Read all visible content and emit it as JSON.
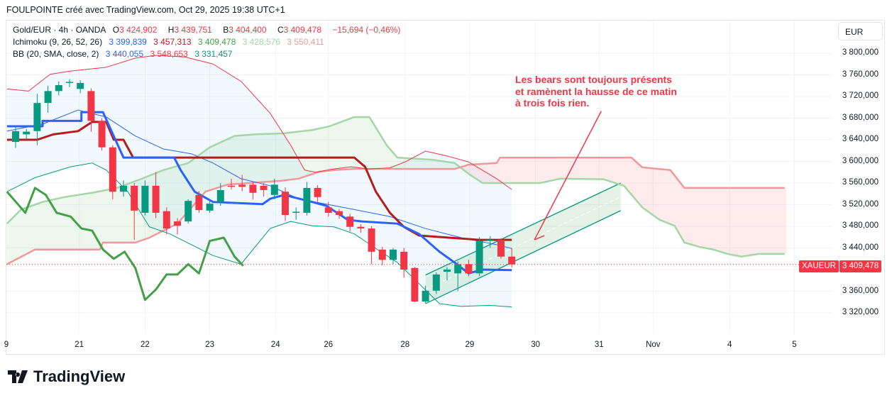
{
  "header": "FOULPOINTE créé avec TradingView.com, Oct 29, 2025 19:38 UTC+1",
  "legend": {
    "symbol": "Gold/EUR · 4h · OANDA",
    "o_label": "O",
    "o": "3 424,902",
    "h_label": "H",
    "h": "3 439,751",
    "b_label": "B",
    "b": "3 404,400",
    "c_label": "C",
    "c": "3 409,478",
    "change": "−15,694 (−0,46%)",
    "ichimoku_label": "Ichimoku (9, 26, 52, 26)",
    "ichimoku_values": [
      "3 399,839",
      "3 457,313",
      "3 409,478",
      "3 428,576",
      "3 550,411"
    ],
    "bb_label": "BB (20, SMA, close, 2)",
    "bb_values": [
      "3 440,055",
      "3 548,653",
      "3 331,457"
    ]
  },
  "currency_button": "EUR",
  "price_axis": [
    "3 800,000",
    "3 760,000",
    "3 720,000",
    "3 680,000",
    "3 640,000",
    "3 600,000",
    "3 560,000",
    "3 520,000",
    "3 480,000",
    "3 440,000",
    "3 360,000",
    "3 320,000"
  ],
  "last_price": {
    "symbol": "XAUEUR",
    "value": "3 409,478",
    "price": 3409.478
  },
  "annotation": "Les bears sont toujours présents\net ramènent la hausse de ce matin\nà trois fois rien.",
  "logo": "TradingView",
  "colors": {
    "up": "#089981",
    "down": "#f23645",
    "tenkan": "#2962ff",
    "kijun": "#b71c1c",
    "chikou": "#43a047",
    "spanA": "#a5d6a7",
    "spanB": "#ef9a9a",
    "bbBasis": "#2962ff",
    "bbUpper": "#f23645",
    "bbLower": "#089981"
  },
  "chart_data": {
    "type": "candlestick",
    "title": "Gold/EUR · 4h · OANDA",
    "ylim": [
      3300,
      3840
    ],
    "x_ticks": [
      {
        "label": "9",
        "i": -0.9
      },
      {
        "label": "21",
        "i": 5.9
      },
      {
        "label": "22",
        "i": 12
      },
      {
        "label": "23",
        "i": 18
      },
      {
        "label": "24",
        "i": 24.1
      },
      {
        "label": "26",
        "i": 29
      },
      {
        "label": "28",
        "i": 36.1
      },
      {
        "label": "29",
        "i": 42.1
      },
      {
        "label": "30",
        "i": 48.2
      },
      {
        "label": "31",
        "i": 54.1
      },
      {
        "label": "Nov",
        "i": 59.1
      },
      {
        "label": "4",
        "i": 66.2
      },
      {
        "label": "5",
        "i": 72.2
      }
    ],
    "candles": [
      [
        3636,
        3665,
        3625,
        3656
      ],
      [
        3650,
        3660,
        3640,
        3655
      ],
      [
        3656,
        3725,
        3630,
        3708
      ],
      [
        3708,
        3740,
        3690,
        3730
      ],
      [
        3730,
        3748,
        3722,
        3741
      ],
      [
        3745,
        3752,
        3737,
        3747
      ],
      [
        3734,
        3750,
        3726,
        3745
      ],
      [
        3730,
        3735,
        3655,
        3675
      ],
      [
        3675,
        3680,
        3620,
        3626
      ],
      [
        3626,
        3630,
        3530,
        3544
      ],
      [
        3544,
        3565,
        3535,
        3555
      ],
      [
        3555,
        3560,
        3455,
        3509
      ],
      [
        3505,
        3565,
        3500,
        3555
      ],
      [
        3555,
        3580,
        3495,
        3505
      ],
      [
        3508,
        3515,
        3465,
        3476
      ],
      [
        3489,
        3495,
        3465,
        3481
      ],
      [
        3489,
        3530,
        3485,
        3527
      ],
      [
        3538,
        3545,
        3505,
        3510
      ],
      [
        3509,
        3530,
        3505,
        3522
      ],
      [
        3525,
        3560,
        3518,
        3547
      ],
      [
        3555,
        3568,
        3548,
        3553
      ],
      [
        3557,
        3575,
        3545,
        3553
      ],
      [
        3557,
        3562,
        3530,
        3542
      ],
      [
        3555,
        3560,
        3535,
        3547
      ],
      [
        3538,
        3568,
        3530,
        3557
      ],
      [
        3544,
        3552,
        3490,
        3501
      ],
      [
        3505,
        3515,
        3492,
        3507
      ],
      [
        3505,
        3562,
        3500,
        3551
      ],
      [
        3551,
        3556,
        3525,
        3534
      ],
      [
        3515,
        3525,
        3498,
        3505
      ],
      [
        3508,
        3512,
        3494,
        3501
      ],
      [
        3498,
        3503,
        3470,
        3479
      ],
      [
        3479,
        3484,
        3468,
        3476
      ],
      [
        3476,
        3480,
        3410,
        3433
      ],
      [
        3437,
        3442,
        3408,
        3418
      ],
      [
        3418,
        3440,
        3410,
        3437
      ],
      [
        3433,
        3440,
        3385,
        3400
      ],
      [
        3403,
        3405,
        3340,
        3341
      ],
      [
        3341,
        3370,
        3338,
        3361
      ],
      [
        3361,
        3395,
        3355,
        3391
      ],
      [
        3396,
        3405,
        3380,
        3400
      ],
      [
        3393,
        3415,
        3360,
        3410
      ],
      [
        3410,
        3418,
        3388,
        3393
      ],
      [
        3393,
        3460,
        3388,
        3453
      ],
      [
        3453,
        3462,
        3440,
        3455
      ],
      [
        3455,
        3458,
        3420,
        3424
      ],
      [
        3424,
        3440,
        3404,
        3409.478
      ]
    ],
    "ichimoku": {
      "tenkan": [
        [
          -0.8,
          3665
        ],
        [
          2.5,
          3665
        ],
        [
          2.5,
          3675
        ],
        [
          6.1,
          3675
        ],
        [
          6.1,
          3691
        ],
        [
          8.1,
          3691
        ],
        [
          10,
          3607
        ],
        [
          14.7,
          3607
        ],
        [
          15.3,
          3584
        ],
        [
          16.6,
          3544
        ],
        [
          18.3,
          3525
        ],
        [
          22.9,
          3521
        ],
        [
          23.6,
          3531
        ],
        [
          24.9,
          3538
        ],
        [
          27.5,
          3525
        ],
        [
          28.8,
          3518
        ],
        [
          30.8,
          3492
        ],
        [
          32.1,
          3489
        ],
        [
          35.4,
          3485
        ],
        [
          37.4,
          3466
        ],
        [
          39.3,
          3433
        ],
        [
          40.7,
          3413
        ],
        [
          42,
          3393
        ],
        [
          43.3,
          3400
        ],
        [
          46,
          3399
        ]
      ],
      "kijun": [
        [
          -0.8,
          3640
        ],
        [
          2,
          3640
        ],
        [
          3.5,
          3650
        ],
        [
          5.8,
          3656
        ],
        [
          7.1,
          3673
        ],
        [
          8.4,
          3673
        ],
        [
          9.1,
          3640
        ],
        [
          10,
          3640
        ],
        [
          10.9,
          3607
        ],
        [
          31.4,
          3607
        ],
        [
          32.4,
          3590
        ],
        [
          33.4,
          3544
        ],
        [
          34.7,
          3505
        ],
        [
          36,
          3479
        ],
        [
          37.4,
          3463
        ],
        [
          43,
          3455
        ],
        [
          46,
          3455
        ]
      ],
      "chikou": [
        [
          -0.8,
          3544
        ],
        [
          0.9,
          3505
        ],
        [
          1.8,
          3551
        ],
        [
          2.8,
          3538
        ],
        [
          3.8,
          3505
        ],
        [
          5.1,
          3498
        ],
        [
          6.1,
          3476
        ],
        [
          7.1,
          3472
        ],
        [
          8.1,
          3437
        ],
        [
          9.1,
          3420
        ],
        [
          10.1,
          3433
        ],
        [
          11.1,
          3403
        ],
        [
          12,
          3344
        ],
        [
          13,
          3363
        ],
        [
          14,
          3391
        ],
        [
          15,
          3391
        ],
        [
          16,
          3410
        ],
        [
          17,
          3393
        ],
        [
          18,
          3453
        ],
        [
          19.3,
          3459
        ],
        [
          20.3,
          3424
        ],
        [
          21.1,
          3407
        ]
      ],
      "spanA": [
        [
          -0.8,
          3485
        ],
        [
          0.5,
          3511
        ],
        [
          2.5,
          3525
        ],
        [
          4.5,
          3534
        ],
        [
          7.1,
          3542
        ],
        [
          9.4,
          3551
        ],
        [
          11.7,
          3568
        ],
        [
          13.7,
          3584
        ],
        [
          16,
          3597
        ],
        [
          18,
          3626
        ],
        [
          20.3,
          3647
        ],
        [
          22.2,
          3650
        ],
        [
          24.9,
          3652
        ],
        [
          27.5,
          3658
        ],
        [
          29.1,
          3665
        ],
        [
          31.4,
          3682
        ],
        [
          32.8,
          3682
        ],
        [
          34.4,
          3630
        ],
        [
          35.4,
          3607
        ],
        [
          38.7,
          3603
        ],
        [
          40.7,
          3597
        ],
        [
          42,
          3577
        ],
        [
          43.3,
          3560
        ],
        [
          48.6,
          3560
        ],
        [
          50.5,
          3568
        ],
        [
          54.5,
          3567
        ],
        [
          56.4,
          3555
        ],
        [
          58.1,
          3515
        ],
        [
          59.7,
          3492
        ],
        [
          61.1,
          3481
        ],
        [
          62,
          3450
        ],
        [
          63.4,
          3442
        ],
        [
          64.7,
          3437
        ],
        [
          66,
          3429
        ],
        [
          67.3,
          3424
        ],
        [
          68.9,
          3429
        ],
        [
          71.3,
          3429
        ]
      ],
      "spanB": [
        [
          -0.8,
          3410
        ],
        [
          1.8,
          3437
        ],
        [
          7.8,
          3437
        ],
        [
          8.1,
          3450
        ],
        [
          11.1,
          3450
        ],
        [
          12.4,
          3459
        ],
        [
          15,
          3485
        ],
        [
          17.6,
          3544
        ],
        [
          19.6,
          3557
        ],
        [
          21.6,
          3560
        ],
        [
          24.5,
          3564
        ],
        [
          26.2,
          3568
        ],
        [
          28.2,
          3581
        ],
        [
          29.5,
          3584
        ],
        [
          31.4,
          3586
        ],
        [
          40.7,
          3586
        ],
        [
          42,
          3594
        ],
        [
          44.6,
          3597
        ],
        [
          44.9,
          3607
        ],
        [
          57.1,
          3607
        ],
        [
          58.1,
          3589
        ],
        [
          60.7,
          3584
        ],
        [
          62,
          3551
        ],
        [
          71.3,
          3551
        ]
      ]
    },
    "bollinger": {
      "upper": [
        [
          -0.8,
          3734
        ],
        [
          1.2,
          3730
        ],
        [
          3.2,
          3761
        ],
        [
          5.1,
          3767
        ],
        [
          8.4,
          3774
        ],
        [
          11.1,
          3791
        ],
        [
          13,
          3796
        ],
        [
          15.7,
          3793
        ],
        [
          18.3,
          3780
        ],
        [
          20.9,
          3748
        ],
        [
          23.6,
          3689
        ],
        [
          25.5,
          3630
        ],
        [
          26.8,
          3584
        ],
        [
          27.8,
          3580
        ],
        [
          29.5,
          3586
        ],
        [
          31.1,
          3590
        ],
        [
          32.8,
          3586
        ],
        [
          34.7,
          3588
        ],
        [
          36.1,
          3599
        ],
        [
          38,
          3619
        ],
        [
          40,
          3610
        ],
        [
          42,
          3599
        ],
        [
          44.6,
          3568
        ],
        [
          46,
          3548
        ]
      ],
      "basis": [
        [
          -0.8,
          3656
        ],
        [
          2.5,
          3669
        ],
        [
          5.8,
          3695
        ],
        [
          8.4,
          3682
        ],
        [
          11.1,
          3647
        ],
        [
          13.7,
          3623
        ],
        [
          16.3,
          3614
        ],
        [
          18.3,
          3597
        ],
        [
          20.9,
          3568
        ],
        [
          23.6,
          3555
        ],
        [
          26.2,
          3531
        ],
        [
          28.8,
          3521
        ],
        [
          31.4,
          3511
        ],
        [
          34.7,
          3498
        ],
        [
          38,
          3476
        ],
        [
          41.3,
          3459
        ],
        [
          44.6,
          3446
        ],
        [
          46,
          3439
        ]
      ],
      "lower": [
        [
          -0.8,
          3544
        ],
        [
          1.8,
          3570
        ],
        [
          5.1,
          3590
        ],
        [
          7.1,
          3597
        ],
        [
          8.4,
          3584
        ],
        [
          10.4,
          3544
        ],
        [
          12.4,
          3479
        ],
        [
          14.3,
          3466
        ],
        [
          16.3,
          3446
        ],
        [
          18.3,
          3426
        ],
        [
          20.9,
          3410
        ],
        [
          23.6,
          3476
        ],
        [
          25.5,
          3489
        ],
        [
          27.5,
          3481
        ],
        [
          29.5,
          3479
        ],
        [
          31.4,
          3466
        ],
        [
          33.4,
          3439
        ],
        [
          35.4,
          3413
        ],
        [
          37.4,
          3374
        ],
        [
          39.3,
          3337
        ],
        [
          41.3,
          3332
        ],
        [
          43.9,
          3334
        ],
        [
          46,
          3331
        ]
      ]
    },
    "drawings": {
      "channel_lower": [
        [
          38,
          3337
        ],
        [
          56.1,
          3509
        ]
      ],
      "channel_upper": [
        [
          38,
          3390
        ],
        [
          56.1,
          3560
        ]
      ],
      "arrow": [
        [
          54.3,
          3693
        ],
        [
          48.1,
          3455
        ]
      ]
    }
  }
}
